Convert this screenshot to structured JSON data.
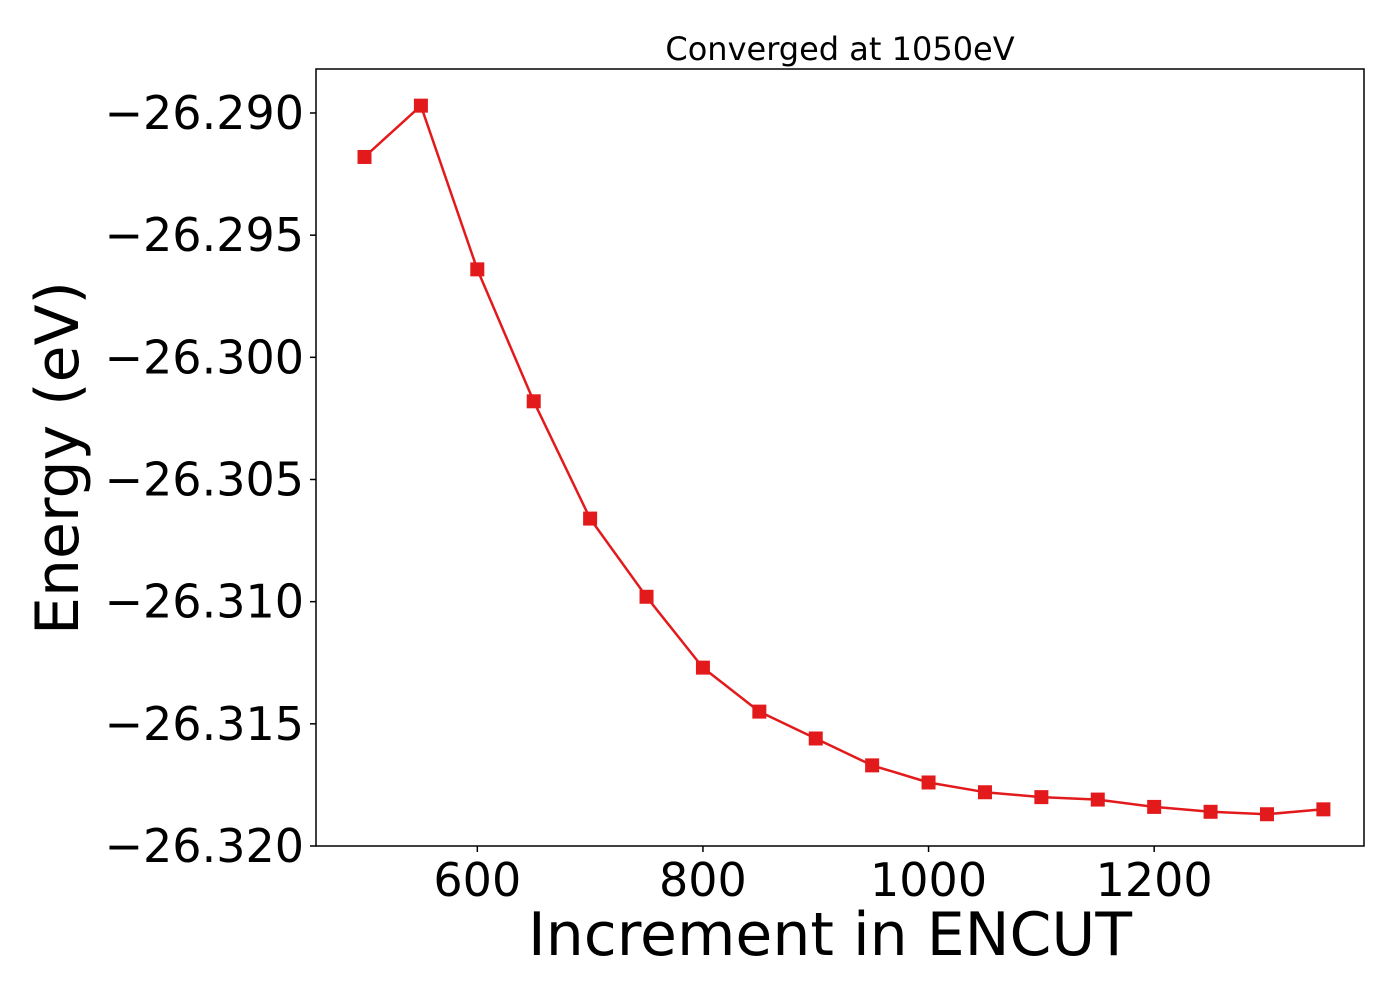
{
  "chart_data": {
    "type": "line",
    "title": "Converged at 1050eV",
    "xlabel": "Increment in ENCUT",
    "ylabel": "Energy (eV)",
    "xlim": [
      457,
      1386
    ],
    "ylim": [
      -26.32,
      -26.2882
    ],
    "x_ticks": [
      600,
      800,
      1000,
      1200
    ],
    "x_tick_labels": [
      "600",
      "800",
      "1000",
      "1200"
    ],
    "y_ticks": [
      -26.29,
      -26.295,
      -26.3,
      -26.305,
      -26.31,
      -26.315,
      -26.32
    ],
    "y_tick_labels": [
      "−26.290",
      "−26.295",
      "−26.300",
      "−26.305",
      "−26.310",
      "−26.315",
      "−26.320"
    ],
    "grid": false,
    "legend": "none",
    "series": [
      {
        "color": "#e31a1c",
        "marker": "square",
        "x": [
          500,
          550,
          600,
          650,
          700,
          750,
          800,
          850,
          900,
          950,
          1000,
          1050,
          1100,
          1150,
          1200,
          1250,
          1300,
          1350
        ],
        "y": [
          -26.2918,
          -26.2897,
          -26.2964,
          -26.3018,
          -26.3066,
          -26.3098,
          -26.3127,
          -26.3145,
          -26.3156,
          -26.3167,
          -26.3174,
          -26.3178,
          -26.318,
          -26.3181,
          -26.3184,
          -26.3186,
          -26.3187,
          -26.3185
        ]
      }
    ]
  }
}
